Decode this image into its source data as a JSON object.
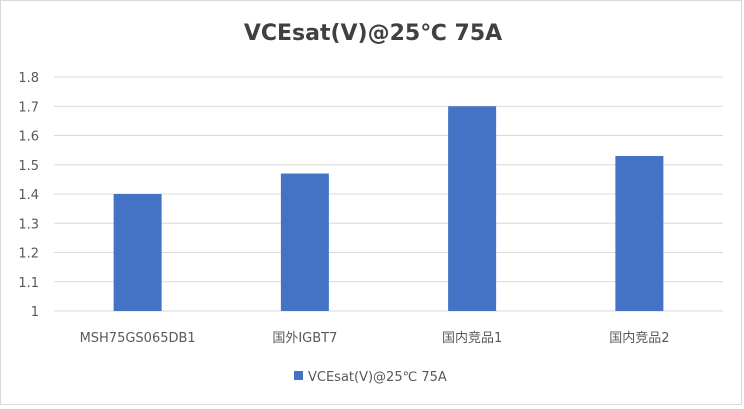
{
  "chart_data": {
    "type": "bar",
    "title": "VCEsat(V)@25℃ 75A",
    "categories": [
      "MSH75GS065DB1",
      "国外IGBT7",
      "国内竞品1",
      "国内竞品2"
    ],
    "series": [
      {
        "name": "VCEsat(V)@25℃ 75A",
        "values": [
          1.4,
          1.47,
          1.7,
          1.53
        ]
      }
    ],
    "ylim": [
      1,
      1.8
    ],
    "yticks": [
      "1",
      "1.1",
      "1.2",
      "1.3",
      "1.4",
      "1.5",
      "1.6",
      "1.7",
      "1.8"
    ],
    "xlabel": "",
    "ylabel": "",
    "grid": true,
    "legend": "bottom",
    "colors": {
      "bar": "#4472C4",
      "grid": "#d9d9d9",
      "text": "#595959",
      "title": "#404040"
    }
  }
}
